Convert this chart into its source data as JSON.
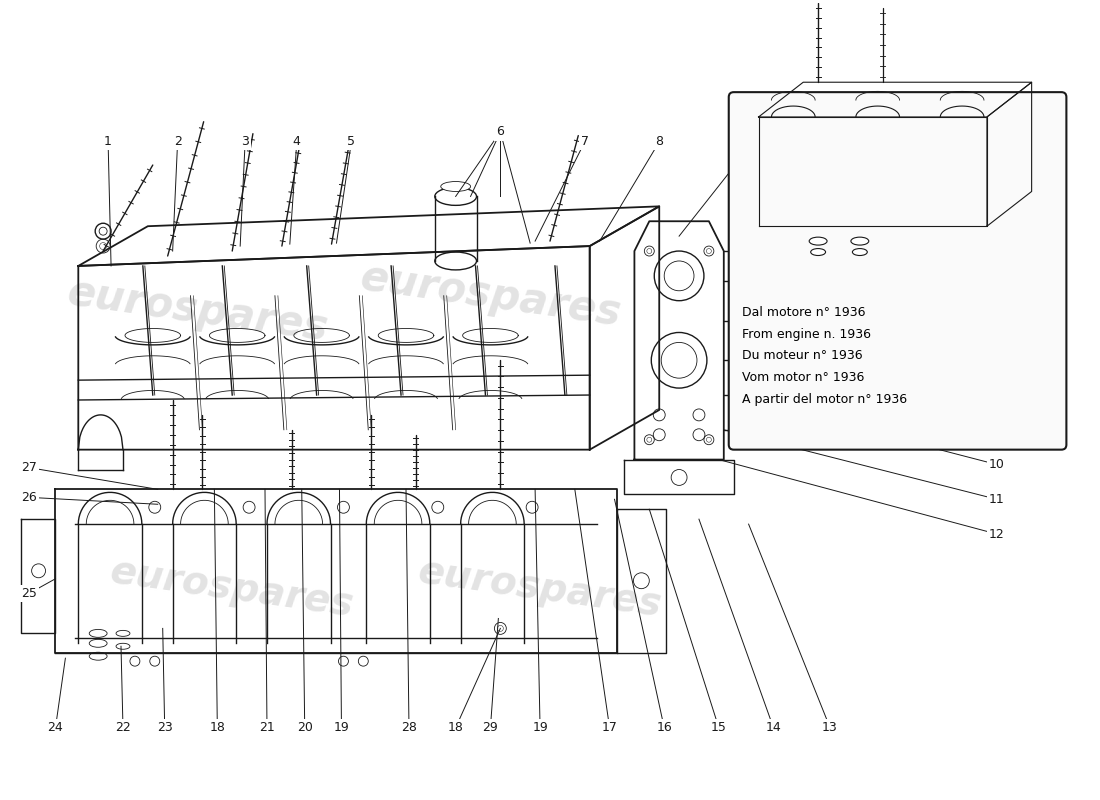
{
  "bg_color": "#ffffff",
  "line_color": "#1a1a1a",
  "watermark_color": "#d0d0d0",
  "lw_main": 1.0,
  "lw_thin": 0.6,
  "lw_thick": 1.3,
  "inset_text": [
    "Dal motore n° 1936",
    "From engine n. 1936",
    "Du moteur n° 1936",
    "Vom motor n° 1936",
    "A partir del motor n° 1936"
  ],
  "figsize": [
    11.0,
    8.0
  ],
  "dpi": 100
}
